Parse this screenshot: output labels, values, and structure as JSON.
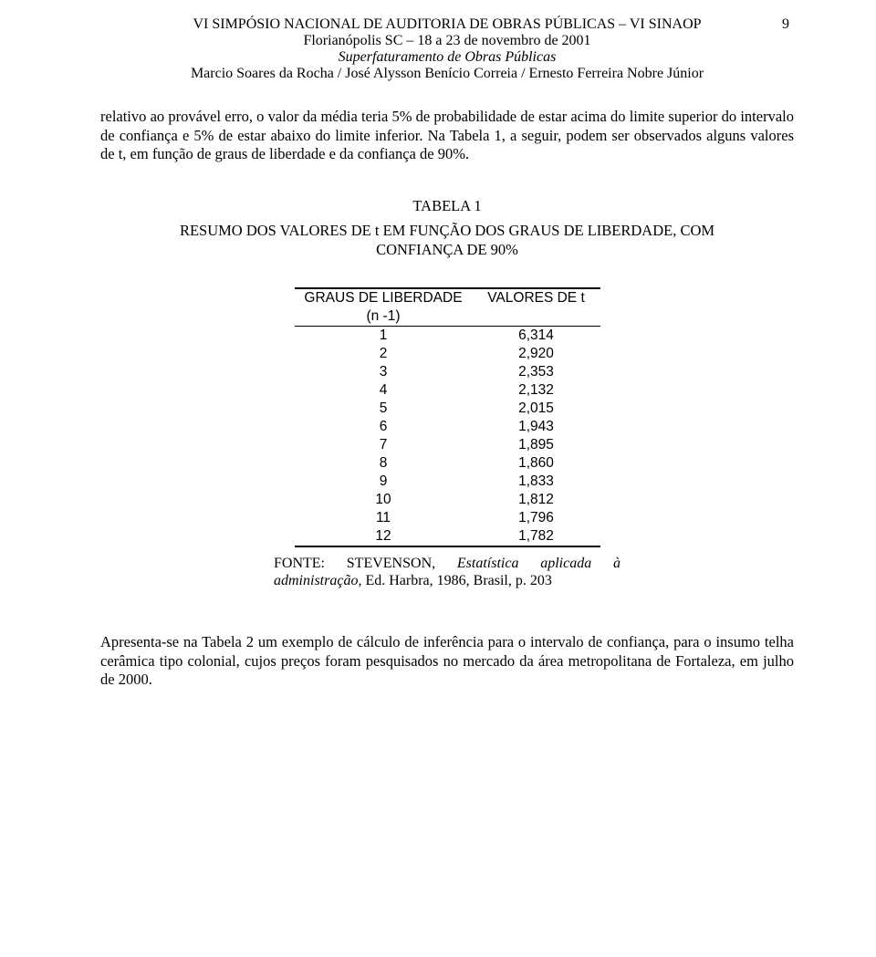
{
  "page_number": "9",
  "header": {
    "line1": "VI SIMPÓSIO NACIONAL DE AUDITORIA DE OBRAS PÚBLICAS – VI SINAOP",
    "line2": "Florianópolis SC – 18 a 23 de novembro de 2001",
    "line3": "Superfaturamento de Obras Públicas",
    "line4": "Marcio Soares da Rocha / José Alysson Benício Correia / Ernesto Ferreira Nobre Júnior"
  },
  "paragraph1": "relativo ao provável erro, o valor da média teria 5% de probabilidade de estar acima do limite superior do intervalo de confiança e 5% de estar abaixo do limite inferior. Na Tabela 1, a seguir, podem ser observados alguns valores de t, em função de graus de liberdade e da confiança de 90%.",
  "table_title": "TABELA 1",
  "table_subtitle": "RESUMO DOS VALORES DE t EM FUNÇÃO DOS GRAUS DE LIBERDADE, COM CONFIANÇA DE 90%",
  "table": {
    "header_col1_line1": "GRAUS DE LIBERDADE",
    "header_col1_line2": "(n -1)",
    "header_col2": "VALORES DE t",
    "rows": [
      {
        "g": "1",
        "t": "6,314"
      },
      {
        "g": "2",
        "t": "2,920"
      },
      {
        "g": "3",
        "t": "2,353"
      },
      {
        "g": "4",
        "t": "2,132"
      },
      {
        "g": "5",
        "t": "2,015"
      },
      {
        "g": "6",
        "t": "1,943"
      },
      {
        "g": "7",
        "t": "1,895"
      },
      {
        "g": "8",
        "t": "1,860"
      },
      {
        "g": "9",
        "t": "1,833"
      },
      {
        "g": "10",
        "t": "1,812"
      },
      {
        "g": "11",
        "t": "1,796"
      },
      {
        "g": "12",
        "t": "1,782"
      }
    ]
  },
  "source": {
    "label": "FONTE:",
    "name": "STEVENSON,",
    "title": "Estatística aplicada à administração",
    "rest": ", Ed. Harbra, 1986, Brasil, p. 203"
  },
  "paragraph2": "Apresenta-se na Tabela 2 um exemplo de cálculo de inferência para o intervalo de confiança, para o insumo telha cerâmica tipo colonial, cujos preços foram pesquisados no mercado da área metropolitana de Fortaleza, em julho de 2000."
}
